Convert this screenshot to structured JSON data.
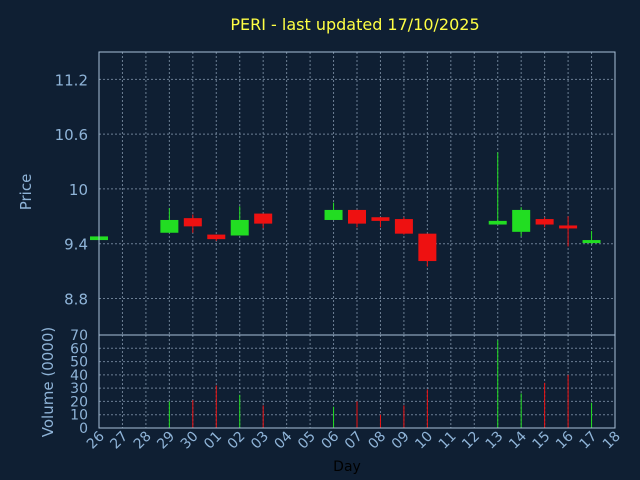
{
  "chart_data": [
    {
      "type": "candlestick",
      "title": "PERI - last updated 17/10/2025",
      "ylabel": "Price",
      "ylim": [
        8.4,
        11.5
      ],
      "yticks": [
        8.8,
        9.4,
        10,
        10.6,
        11.2
      ],
      "ytick_labels": [
        "8.8",
        "9.4",
        "10",
        "10.6",
        "11.2"
      ],
      "grid": true,
      "categories": [
        "26",
        "27",
        "28",
        "29",
        "30",
        "01",
        "02",
        "03",
        "04",
        "05",
        "06",
        "07",
        "08",
        "09",
        "10",
        "11",
        "12",
        "13",
        "14",
        "15",
        "16",
        "17",
        "18"
      ],
      "candles": [
        {
          "day": "26",
          "open": 9.44,
          "close": 9.48,
          "high": 9.48,
          "low": 9.44
        },
        {
          "day": "29",
          "open": 9.52,
          "close": 9.66,
          "high": 9.79,
          "low": 9.52
        },
        {
          "day": "30",
          "open": 9.68,
          "close": 9.59,
          "high": 9.72,
          "low": 9.52
        },
        {
          "day": "01",
          "open": 9.5,
          "close": 9.45,
          "high": 9.5,
          "low": 9.43
        },
        {
          "day": "02",
          "open": 9.49,
          "close": 9.66,
          "high": 9.81,
          "low": 9.49
        },
        {
          "day": "03",
          "open": 9.73,
          "close": 9.62,
          "high": 9.73,
          "low": 9.57
        },
        {
          "day": "06",
          "open": 9.66,
          "close": 9.77,
          "high": 9.85,
          "low": 9.66
        },
        {
          "day": "07",
          "open": 9.77,
          "close": 9.62,
          "high": 9.77,
          "low": 9.58
        },
        {
          "day": "08",
          "open": 9.69,
          "close": 9.65,
          "high": 9.69,
          "low": 9.58
        },
        {
          "day": "09",
          "open": 9.67,
          "close": 9.51,
          "high": 9.69,
          "low": 9.5
        },
        {
          "day": "10",
          "open": 9.51,
          "close": 9.21,
          "high": 9.51,
          "low": 9.15
        },
        {
          "day": "13",
          "open": 9.61,
          "close": 9.65,
          "high": 10.4,
          "low": 9.61
        },
        {
          "day": "14",
          "open": 9.53,
          "close": 9.77,
          "high": 9.8,
          "low": 9.48
        },
        {
          "day": "15",
          "open": 9.67,
          "close": 9.61,
          "high": 9.69,
          "low": 9.58
        },
        {
          "day": "16",
          "open": 9.6,
          "close": 9.57,
          "high": 9.7,
          "low": 9.37
        },
        {
          "day": "17",
          "open": 9.42,
          "close": 9.44,
          "high": 9.54,
          "low": 9.4
        }
      ]
    },
    {
      "type": "bar",
      "ylabel": "Volume (0000)",
      "xlabel": "Day",
      "ylim": [
        0,
        70
      ],
      "yticks": [
        0,
        10,
        20,
        30,
        40,
        50,
        60,
        70
      ],
      "ytick_labels": [
        "0",
        "10",
        "20",
        "30",
        "40",
        "50",
        "60",
        "70"
      ],
      "grid": true,
      "categories": [
        "26",
        "27",
        "28",
        "29",
        "30",
        "01",
        "02",
        "03",
        "04",
        "05",
        "06",
        "07",
        "08",
        "09",
        "10",
        "11",
        "12",
        "13",
        "14",
        "15",
        "16",
        "17",
        "18"
      ],
      "bars": [
        {
          "day": "29",
          "value": 20,
          "direction": "up"
        },
        {
          "day": "30",
          "value": 21,
          "direction": "down"
        },
        {
          "day": "01",
          "value": 32,
          "direction": "down"
        },
        {
          "day": "02",
          "value": 25,
          "direction": "up"
        },
        {
          "day": "03",
          "value": 17,
          "direction": "down"
        },
        {
          "day": "06",
          "value": 16,
          "direction": "up"
        },
        {
          "day": "07",
          "value": 20,
          "direction": "down"
        },
        {
          "day": "08",
          "value": 10,
          "direction": "down"
        },
        {
          "day": "09",
          "value": 17,
          "direction": "down"
        },
        {
          "day": "10",
          "value": 29,
          "direction": "down"
        },
        {
          "day": "13",
          "value": 66,
          "direction": "up"
        },
        {
          "day": "14",
          "value": 26,
          "direction": "up"
        },
        {
          "day": "15",
          "value": 34,
          "direction": "down"
        },
        {
          "day": "16",
          "value": 40,
          "direction": "down"
        },
        {
          "day": "17",
          "value": 19,
          "direction": "up"
        }
      ]
    }
  ],
  "colors": {
    "background": "#0f1f33",
    "title": "#ffff44",
    "axis_text": "#8fb4d8",
    "frame": "#a9c1d9",
    "grid": "#6c7f94",
    "up": "#22dd22",
    "down": "#ee1111"
  }
}
